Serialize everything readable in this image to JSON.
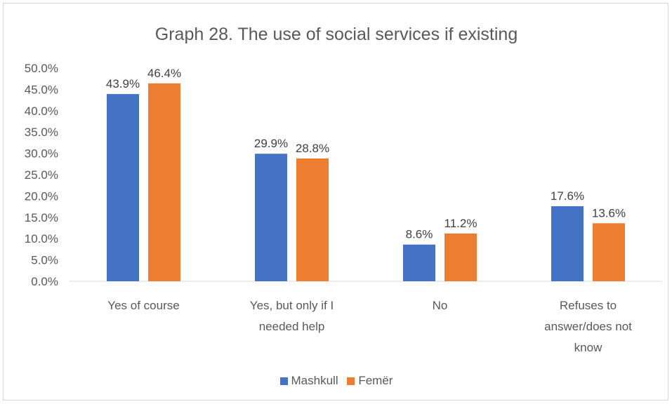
{
  "chart_data": {
    "type": "bar",
    "title": "Graph 28. The use of social services if existing",
    "categories": [
      [
        "Yes of course"
      ],
      [
        "Yes, but only if I",
        "needed help"
      ],
      [
        "No"
      ],
      [
        "Refuses to",
        "answer/does not",
        "know"
      ]
    ],
    "series": [
      {
        "name": "Mashkull",
        "color": "#4472C4",
        "values": [
          43.9,
          29.9,
          8.6,
          17.6
        ],
        "labels": [
          "43.9%",
          "29.9%",
          "8.6%",
          "17.6%"
        ]
      },
      {
        "name": "Femër",
        "color": "#ED7D31",
        "values": [
          46.4,
          28.8,
          11.2,
          13.6
        ],
        "labels": [
          "46.4%",
          "28.8%",
          "11.2%",
          "13.6%"
        ]
      }
    ],
    "ylim": [
      0,
      50
    ],
    "yticks": [
      "0.0%",
      "5.0%",
      "10.0%",
      "15.0%",
      "20.0%",
      "25.0%",
      "30.0%",
      "35.0%",
      "40.0%",
      "45.0%",
      "50.0%"
    ],
    "grid": false,
    "legend": "bottom"
  }
}
